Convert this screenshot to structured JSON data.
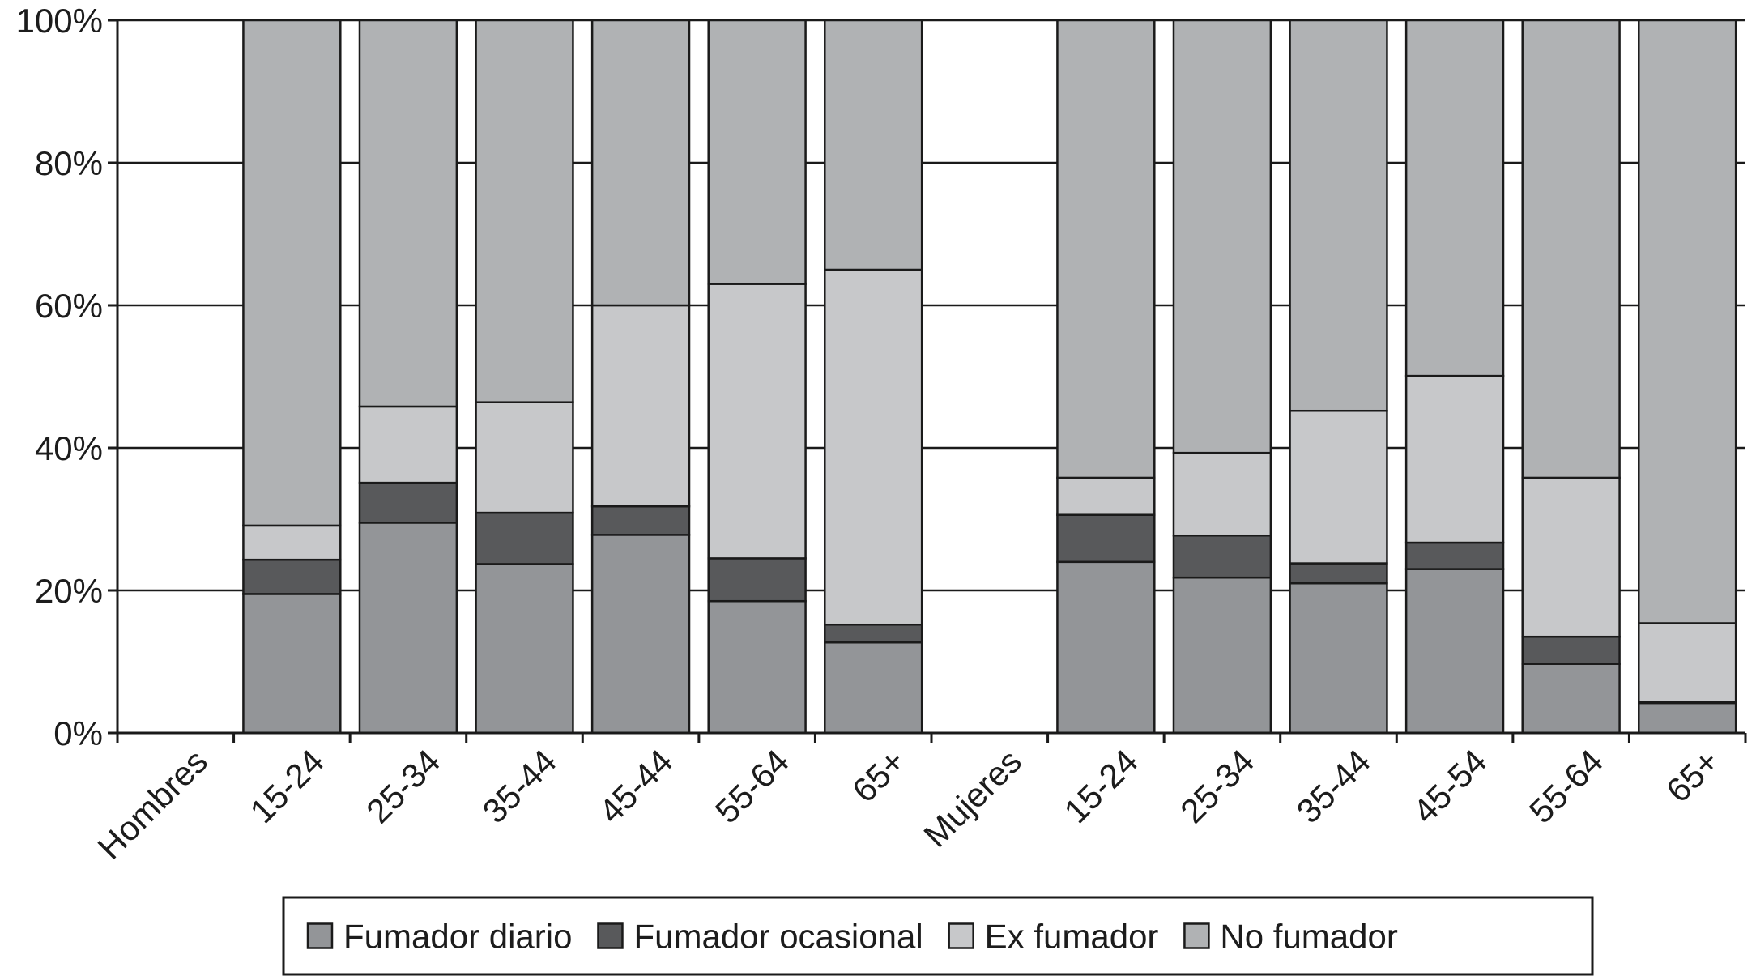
{
  "chart_data": {
    "type": "bar",
    "stacked": true,
    "categories": [
      "Hombres",
      "15-24",
      "25-34",
      "35-44",
      "45-44",
      "55-64",
      "65+",
      "Mujeres",
      "15-24",
      "25-34",
      "35-44",
      "45-54",
      "55-64",
      "65+"
    ],
    "series": [
      {
        "name": "Fumador diario",
        "color": "#939598",
        "values": [
          null,
          19.5,
          29.5,
          23.7,
          27.8,
          18.5,
          12.7,
          null,
          24.0,
          21.8,
          21.0,
          23.0,
          9.7,
          4.2
        ]
      },
      {
        "name": "Fumador ocasional",
        "color": "#58595b",
        "values": [
          null,
          4.8,
          5.6,
          7.2,
          4.0,
          6.0,
          2.5,
          null,
          6.6,
          5.9,
          2.8,
          3.7,
          3.8,
          0.2
        ]
      },
      {
        "name": "Ex fumador",
        "color": "#c7c8ca",
        "values": [
          null,
          4.8,
          10.7,
          15.5,
          28.2,
          38.5,
          49.8,
          null,
          5.2,
          11.6,
          21.4,
          23.4,
          22.3,
          11.0
        ]
      },
      {
        "name": "No fumador",
        "color": "#b0b2b4",
        "values": [
          null,
          70.9,
          54.2,
          53.6,
          40.0,
          37.0,
          35.0,
          null,
          64.2,
          60.7,
          54.8,
          49.9,
          64.2,
          84.6
        ]
      }
    ],
    "y_ticks": [
      "0%",
      "20%",
      "40%",
      "60%",
      "80%",
      "100%"
    ],
    "ylim": [
      0,
      100
    ],
    "grid": "horizontal",
    "legend_position": "bottom",
    "title": "",
    "xlabel": "",
    "ylabel": ""
  }
}
